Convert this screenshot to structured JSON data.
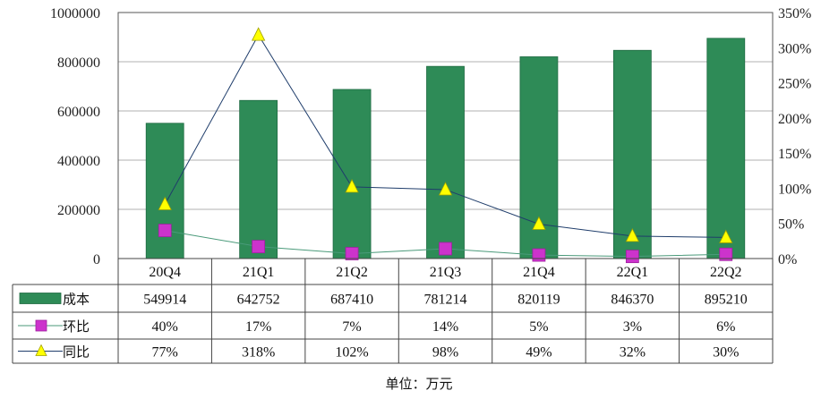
{
  "chart_data": {
    "type": "bar",
    "categories": [
      "20Q4",
      "21Q1",
      "21Q2",
      "21Q3",
      "21Q4",
      "22Q1",
      "22Q2"
    ],
    "series": [
      {
        "name": "成本",
        "kind": "bar",
        "axis": "left",
        "color": "#2e8b57",
        "values": [
          549914,
          642752,
          687410,
          781214,
          820119,
          846370,
          895210
        ]
      },
      {
        "name": "环比",
        "kind": "line",
        "marker": "square",
        "axis": "right",
        "color": "#cc33cc",
        "line_color": "#4a9a7a",
        "values": [
          40,
          17,
          7,
          14,
          5,
          3,
          6
        ],
        "labels": [
          "40%",
          "17%",
          "7%",
          "14%",
          "5%",
          "3%",
          "6%"
        ]
      },
      {
        "name": "同比",
        "kind": "line",
        "marker": "triangle",
        "axis": "right",
        "color": "#ffff00",
        "line_color": "#1f3d6b",
        "values": [
          77,
          318,
          102,
          98,
          49,
          32,
          30
        ],
        "labels": [
          "77%",
          "318%",
          "102%",
          "98%",
          "49%",
          "32%",
          "30%"
        ]
      }
    ],
    "y_left": {
      "min": 0,
      "max": 1000000,
      "step": 200000,
      "ticks": [
        "0",
        "200000",
        "400000",
        "600000",
        "800000",
        "1000000"
      ]
    },
    "y_right": {
      "min": 0,
      "max": 350,
      "step": 50,
      "unit": "%",
      "ticks": [
        "0%",
        "50%",
        "100%",
        "150%",
        "200%",
        "250%",
        "300%",
        "350%"
      ]
    },
    "grid": true,
    "legend": "data-table"
  },
  "unit_note": "单位：万元"
}
